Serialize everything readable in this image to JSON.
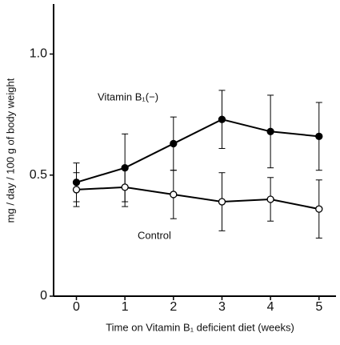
{
  "chart_data": {
    "type": "line",
    "x_label": "Time on Vitamin B₁ deficient diet (weeks)",
    "y_label": "mg / day / 100 g of body weight",
    "x": [
      0,
      1,
      2,
      3,
      4,
      5
    ],
    "series": [
      {
        "name": "Vitamin B₁(−)",
        "color": "#000000",
        "marker": "filled",
        "values": [
          0.47,
          0.53,
          0.63,
          0.73,
          0.68,
          0.66
        ],
        "errors": [
          0.08,
          0.14,
          0.11,
          0.12,
          0.15,
          0.14
        ]
      },
      {
        "name": "Control",
        "color": "#000000",
        "marker": "open",
        "values": [
          0.44,
          0.45,
          0.42,
          0.39,
          0.4,
          0.36
        ],
        "errors": [
          0.07,
          0.08,
          0.1,
          0.12,
          0.09,
          0.12
        ]
      }
    ],
    "xlim": [
      -0.47,
      5.35
    ],
    "ylim": [
      0,
      1.2
    ],
    "xticks": [
      0,
      1,
      2,
      3,
      4,
      5
    ],
    "yticks": [
      0,
      0.5,
      {
        "value": 1,
        "label": "1.0"
      }
    ],
    "grid": false
  }
}
